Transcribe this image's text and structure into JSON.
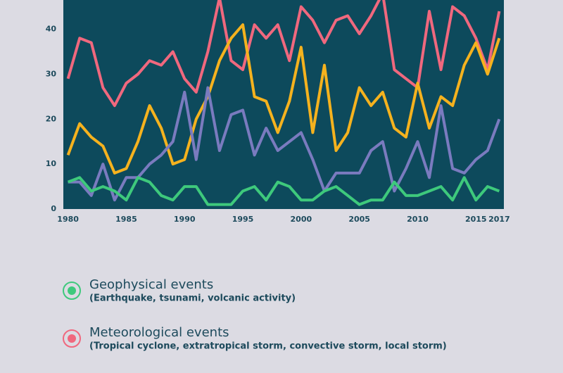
{
  "chart_data": {
    "type": "line",
    "x": [
      1980,
      1981,
      1982,
      1983,
      1984,
      1985,
      1986,
      1987,
      1988,
      1989,
      1990,
      1991,
      1992,
      1993,
      1994,
      1995,
      1996,
      1997,
      1998,
      1999,
      2000,
      2001,
      2002,
      2003,
      2004,
      2005,
      2006,
      2007,
      2008,
      2009,
      2010,
      2011,
      2012,
      2013,
      2014,
      2015,
      2016,
      2017
    ],
    "series": [
      {
        "name": "Meteorological events",
        "description": "(Tropical cyclone, extratropical storm, convective storm, local storm)",
        "color": "#f0687e",
        "values": [
          29,
          38,
          37,
          27,
          23,
          28,
          30,
          33,
          32,
          35,
          29,
          26,
          35,
          47,
          33,
          31,
          41,
          38,
          41,
          33,
          45,
          42,
          37,
          42,
          43,
          39,
          43,
          48,
          31,
          29,
          27,
          44,
          31,
          45,
          43,
          38,
          31,
          44
        ]
      },
      {
        "color": "#f5b21e",
        "values": [
          12,
          19,
          16,
          14,
          8,
          9,
          15,
          23,
          18,
          10,
          11,
          20,
          25,
          33,
          38,
          41,
          25,
          24,
          17,
          24,
          36,
          17,
          32,
          13,
          17,
          27,
          23,
          26,
          18,
          16,
          28,
          18,
          25,
          23,
          32,
          37,
          30,
          38
        ]
      },
      {
        "color": "#7a7bbf",
        "values": [
          6,
          6,
          3,
          10,
          2,
          7,
          7,
          10,
          12,
          15,
          26,
          11,
          27,
          13,
          21,
          22,
          12,
          18,
          13,
          15,
          17,
          11,
          4,
          8,
          8,
          8,
          13,
          15,
          4,
          9,
          15,
          7,
          23,
          9,
          8,
          11,
          13,
          20
        ]
      },
      {
        "name": "Geophysical events",
        "description": "(Earthquake, tsunami, volcanic activity)",
        "color": "#3ec97c",
        "values": [
          6,
          7,
          4,
          5,
          4,
          2,
          7,
          6,
          3,
          2,
          5,
          5,
          1,
          1,
          1,
          4,
          5,
          2,
          6,
          5,
          2,
          2,
          4,
          5,
          3,
          1,
          2,
          2,
          6,
          3,
          3,
          4,
          5,
          2,
          7,
          2,
          5,
          4
        ]
      }
    ],
    "xlim": [
      1979.6,
      2017.4
    ],
    "xticks": [
      1980,
      1985,
      1990,
      1995,
      2000,
      2005,
      2010,
      2015,
      2017
    ],
    "ylim": [
      0,
      46.5
    ],
    "yticks": [
      0,
      10,
      20,
      30,
      40
    ],
    "background": "#0d4a5c"
  }
}
